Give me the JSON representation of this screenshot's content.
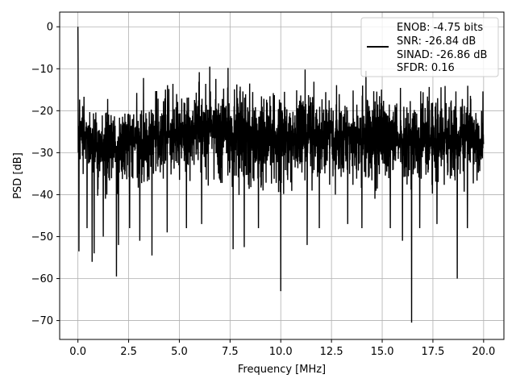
{
  "chart_data": {
    "type": "line",
    "title": "",
    "xlabel": "Frequency [MHz]",
    "ylabel": "PSD [dB]",
    "xlim": [
      -0.9,
      21.0
    ],
    "ylim": [
      -74.5,
      3.5
    ],
    "xticks": [
      0.0,
      2.5,
      5.0,
      7.5,
      10.0,
      12.5,
      15.0,
      17.5,
      20.0
    ],
    "xtick_labels": [
      "0.0",
      "2.5",
      "5.0",
      "7.5",
      "10.0",
      "12.5",
      "15.0",
      "17.5",
      "20.0"
    ],
    "yticks": [
      0,
      -10,
      -20,
      -30,
      -40,
      -50,
      -60,
      -70
    ],
    "ytick_labels": [
      "0",
      "−10",
      "−20",
      "−30",
      "−40",
      "−50",
      "−60",
      "−70"
    ],
    "grid": true,
    "legend_position": "top-right",
    "series": [
      {
        "color": "#000000",
        "x_range": [
          0.0,
          20.0
        ],
        "peak": {
          "x": 0.0,
          "y": 0.0
        },
        "upper_envelope": [
          [
            0.0,
            -14
          ],
          [
            1.0,
            -15
          ],
          [
            2.0,
            -14
          ],
          [
            3.0,
            -12
          ],
          [
            4.0,
            -11
          ],
          [
            5.0,
            -11
          ],
          [
            6.5,
            -10
          ],
          [
            7.5,
            -10
          ],
          [
            9.0,
            -11
          ],
          [
            10.5,
            -11
          ],
          [
            12.0,
            -11
          ],
          [
            13.5,
            -12
          ],
          [
            15.0,
            -12
          ],
          [
            16.5,
            -12
          ],
          [
            18.0,
            -12
          ],
          [
            19.0,
            -13
          ],
          [
            20.0,
            -14
          ]
        ],
        "lower_envelope": [
          [
            0.0,
            -35
          ],
          [
            1.0,
            -42
          ],
          [
            2.0,
            -42
          ],
          [
            3.0,
            -40
          ],
          [
            4.0,
            -40
          ],
          [
            5.0,
            -40
          ],
          [
            6.5,
            -40
          ],
          [
            7.5,
            -41
          ],
          [
            9.0,
            -42
          ],
          [
            10.5,
            -42
          ],
          [
            12.0,
            -41
          ],
          [
            13.5,
            -41
          ],
          [
            15.0,
            -42
          ],
          [
            16.5,
            -42
          ],
          [
            18.0,
            -42
          ],
          [
            19.0,
            -41
          ],
          [
            20.0,
            -40
          ]
        ],
        "dips": [
          [
            0.05,
            -53.5
          ],
          [
            0.45,
            -48
          ],
          [
            0.7,
            -56
          ],
          [
            0.8,
            -54
          ],
          [
            1.25,
            -50
          ],
          [
            1.9,
            -59.5
          ],
          [
            2.0,
            -52
          ],
          [
            2.55,
            -48
          ],
          [
            3.05,
            -51
          ],
          [
            3.65,
            -54.5
          ],
          [
            4.4,
            -49
          ],
          [
            5.35,
            -48
          ],
          [
            6.1,
            -47
          ],
          [
            7.65,
            -53
          ],
          [
            8.2,
            -52.5
          ],
          [
            8.9,
            -48
          ],
          [
            10.0,
            -63
          ],
          [
            11.3,
            -52
          ],
          [
            11.9,
            -48
          ],
          [
            13.3,
            -47
          ],
          [
            14.0,
            -48
          ],
          [
            15.4,
            -48
          ],
          [
            16.0,
            -51
          ],
          [
            16.45,
            -70.5
          ],
          [
            16.85,
            -48
          ],
          [
            17.7,
            -47
          ],
          [
            18.7,
            -60
          ],
          [
            19.2,
            -48
          ]
        ]
      }
    ],
    "legend_lines": [
      "ENOB: -4.75 bits",
      "SNR: -26.84 dB",
      "SINAD: -26.86 dB",
      "SFDR: 0.16"
    ]
  }
}
